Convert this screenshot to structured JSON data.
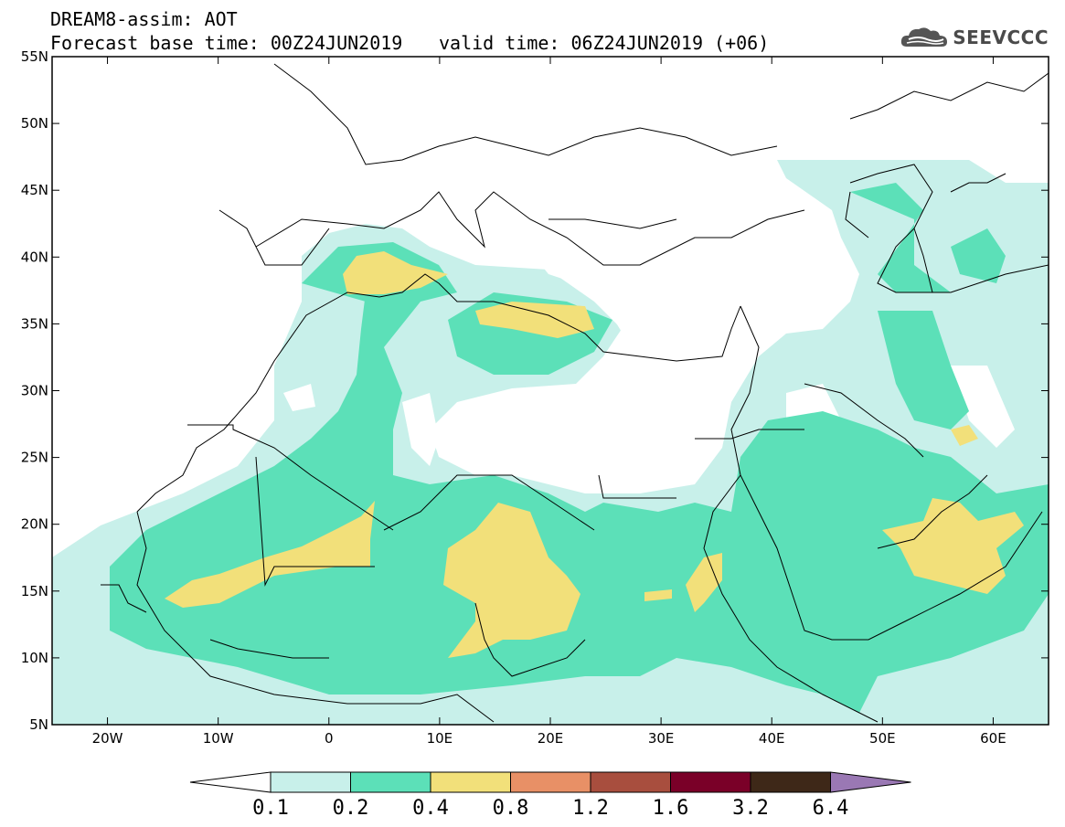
{
  "title": {
    "line1": "DREAM8-assim: AOT",
    "line2": "Forecast base time: 00Z24JUN2019",
    "valid": "valid time: 06Z24JUN2019 (+06)"
  },
  "logo": {
    "text": "SEEVCCC",
    "icon": "cloud-logo-icon"
  },
  "map": {
    "lon_range": [
      -25,
      65
    ],
    "lat_range": [
      5,
      55
    ],
    "lon_ticks": [
      {
        "lon": -20,
        "label": "20W"
      },
      {
        "lon": -10,
        "label": "10W"
      },
      {
        "lon": 0,
        "label": "0"
      },
      {
        "lon": 10,
        "label": "10E"
      },
      {
        "lon": 20,
        "label": "20E"
      },
      {
        "lon": 30,
        "label": "30E"
      },
      {
        "lon": 40,
        "label": "40E"
      },
      {
        "lon": 50,
        "label": "50E"
      },
      {
        "lon": 60,
        "label": "60E"
      }
    ],
    "lat_ticks": [
      {
        "lat": 55,
        "label": "55N"
      },
      {
        "lat": 50,
        "label": "50N"
      },
      {
        "lat": 45,
        "label": "45N"
      },
      {
        "lat": 40,
        "label": "40N"
      },
      {
        "lat": 35,
        "label": "35N"
      },
      {
        "lat": 30,
        "label": "30N"
      },
      {
        "lat": 25,
        "label": "25N"
      },
      {
        "lat": 20,
        "label": "20N"
      },
      {
        "lat": 15,
        "label": "15N"
      },
      {
        "lat": 10,
        "label": "10N"
      },
      {
        "lat": 5,
        "label": "5N"
      }
    ],
    "field_colors": {
      "level_0_1": "#c8f0ea",
      "level_0_2": "#5ce0b8",
      "level_0_4": "#f2e07a"
    }
  },
  "colorbar": {
    "labels": [
      "0.1",
      "0.2",
      "0.4",
      "0.8",
      "1.2",
      "1.6",
      "3.2",
      "6.4"
    ],
    "colors": [
      "#c8f0ea",
      "#5ce0b8",
      "#f2e07a",
      "#e89066",
      "#a84e3e",
      "#7a0028",
      "#3e2818",
      "#9a78b4"
    ],
    "under_color": "#ffffff",
    "over_color": "#9a78b4"
  }
}
